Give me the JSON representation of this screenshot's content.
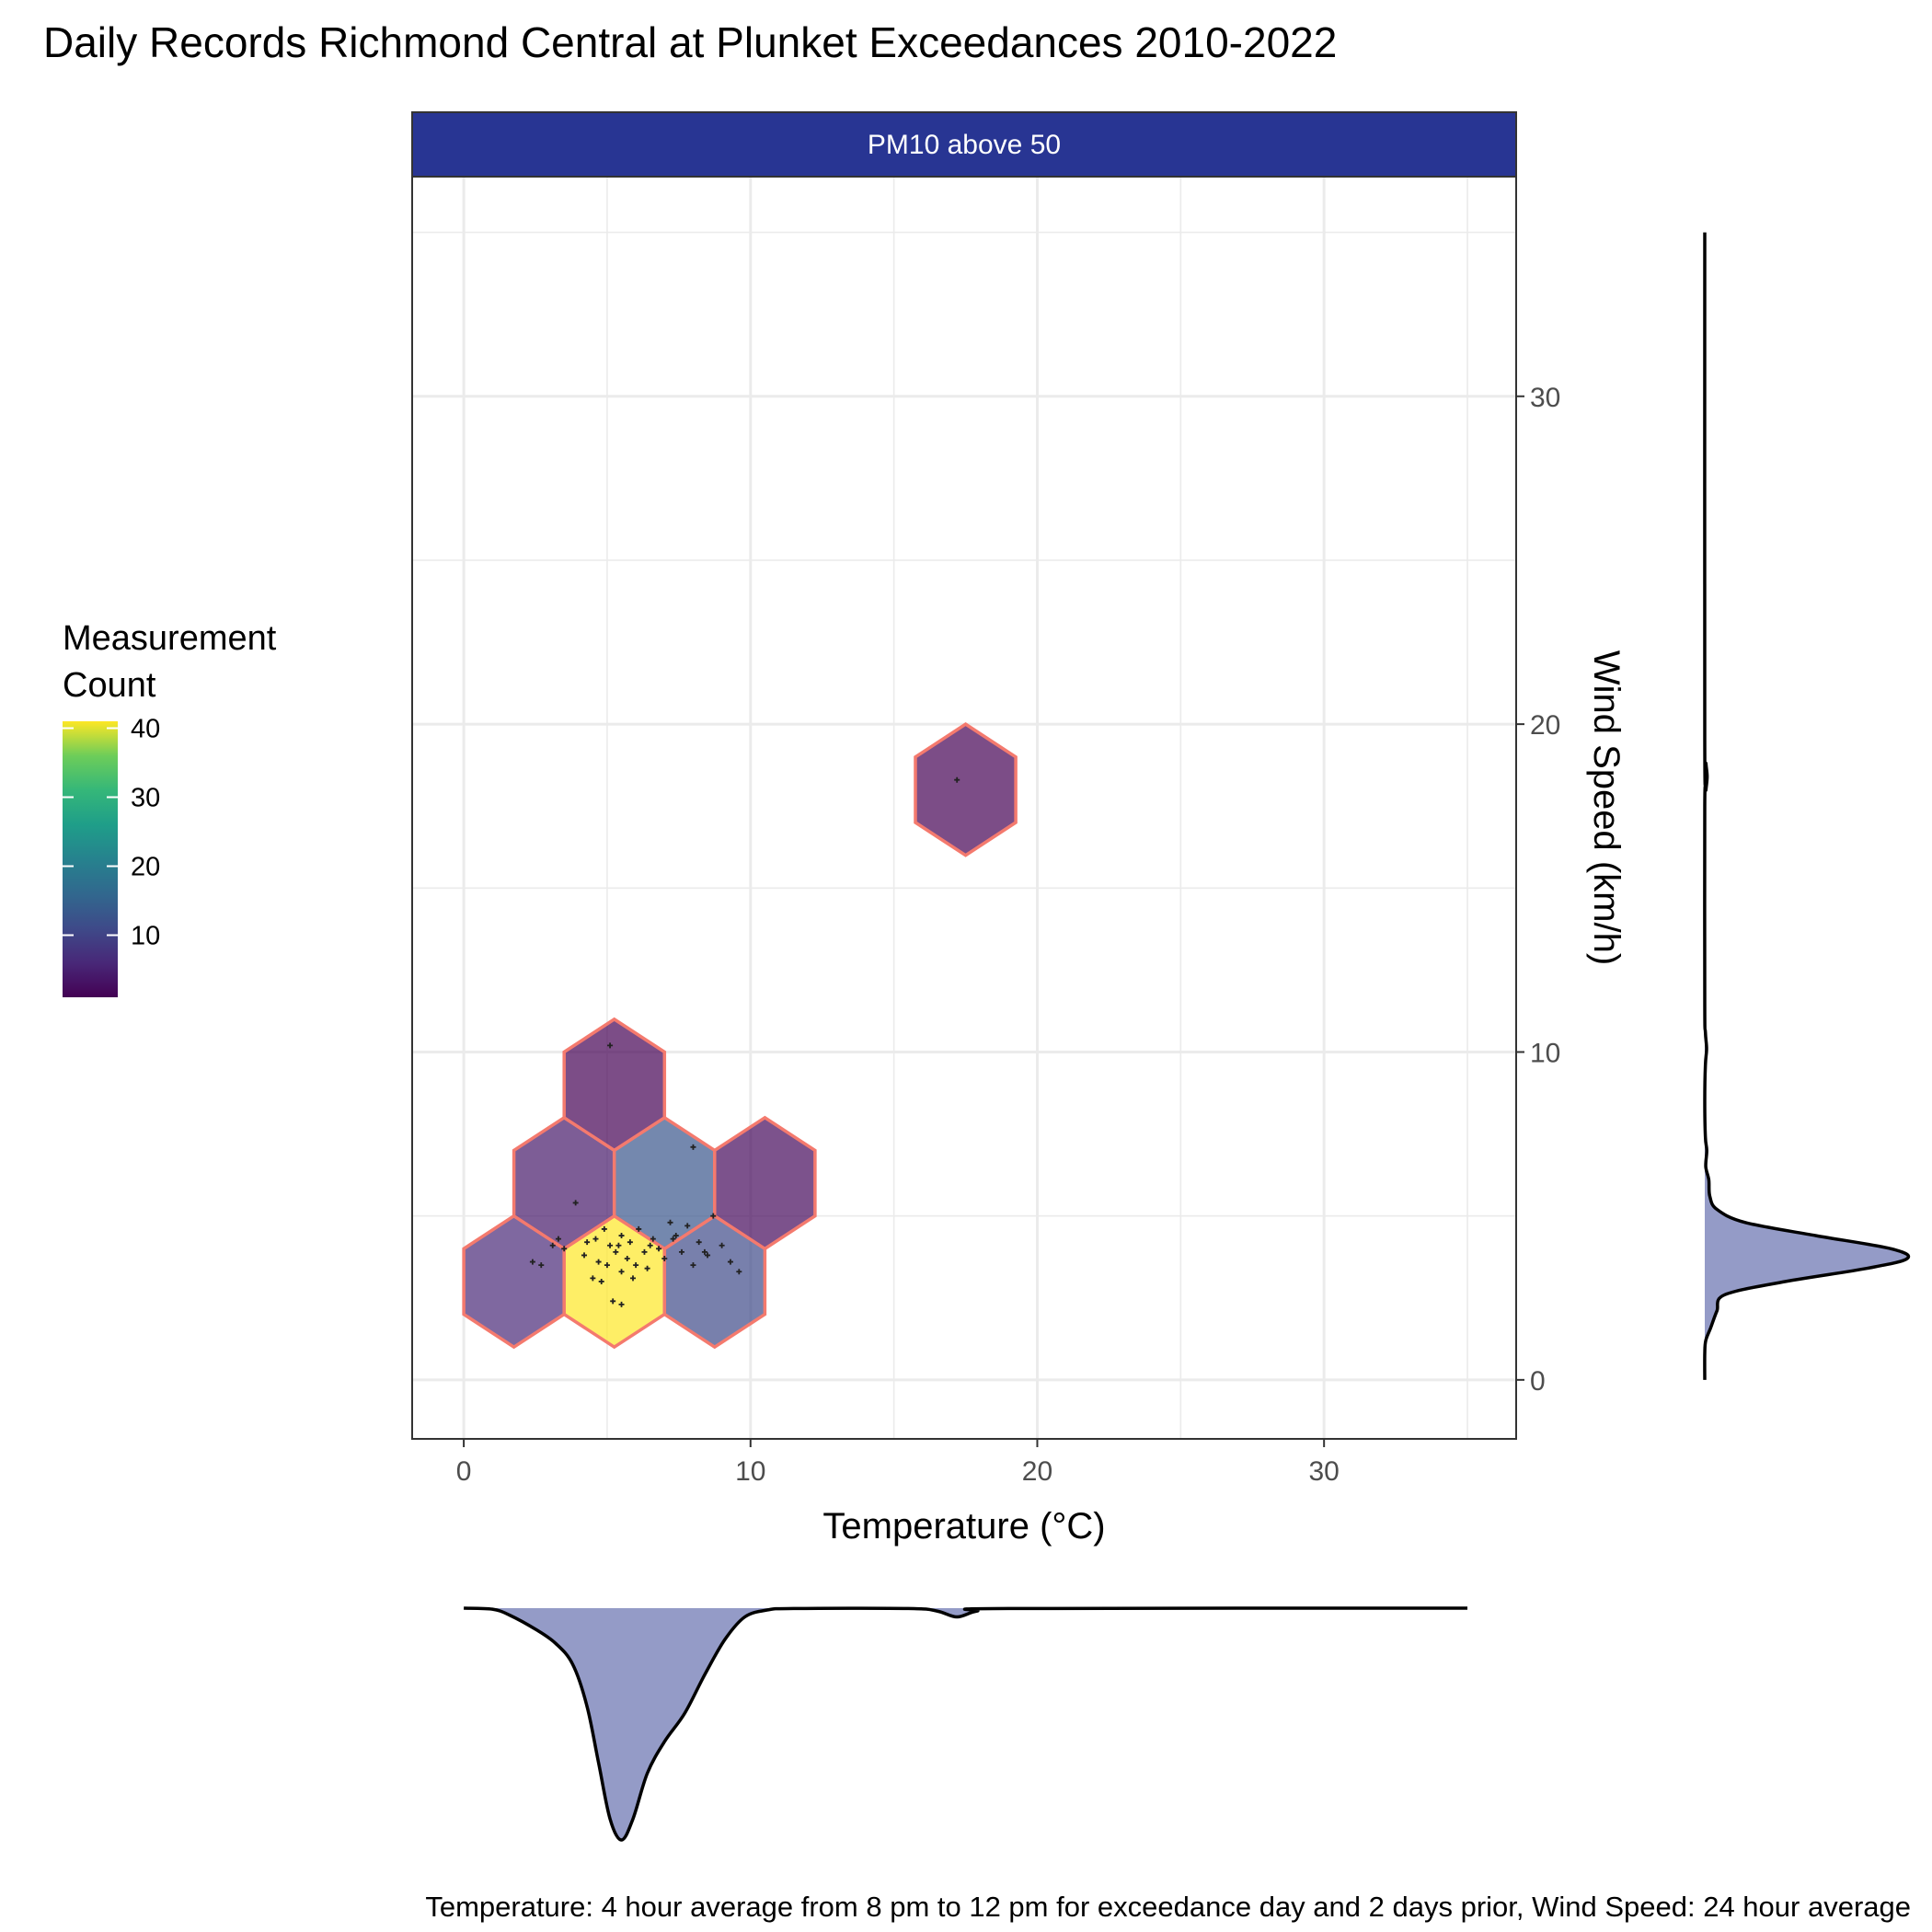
{
  "chart_data": {
    "type": "hexbin",
    "title": "Daily Records Richmond Central at Plunket Exceedances 2010-2022",
    "facet_label": "PM10 above 50",
    "xlabel": "Temperature (°C)",
    "ylabel": "Wind Speed (km/h)",
    "caption": "Temperature: 4 hour average from 8 pm to 12 pm for exceedance day and 2 days prior, Wind Speed: 24 hour average",
    "xlim": [
      -1.8,
      36.7
    ],
    "ylim": [
      -1.8,
      36.7
    ],
    "x_ticks": [
      0,
      10,
      20,
      30
    ],
    "y_ticks": [
      0,
      10,
      20,
      30
    ],
    "y_axis_position": "right",
    "grid": true,
    "legend": {
      "title_lines": [
        "Measurement",
        "Count"
      ],
      "position": "left",
      "ticks": [
        10,
        20,
        30,
        40
      ],
      "range": [
        1,
        41
      ],
      "palette": "viridis"
    },
    "hex_outline_color": "#F47A6E",
    "hexbins": [
      {
        "x": 1.75,
        "y": 3.0,
        "count": 6
      },
      {
        "x": 5.25,
        "y": 3.0,
        "count": 41
      },
      {
        "x": 8.75,
        "y": 3.0,
        "count": 11
      },
      {
        "x": 3.5,
        "y": 6.0,
        "count": 4
      },
      {
        "x": 7.0,
        "y": 6.0,
        "count": 13
      },
      {
        "x": 10.5,
        "y": 6.0,
        "count": 2
      },
      {
        "x": 5.25,
        "y": 9.0,
        "count": 1
      },
      {
        "x": 17.5,
        "y": 18.0,
        "count": 1
      }
    ],
    "points": [
      [
        2.4,
        3.6
      ],
      [
        2.7,
        3.5
      ],
      [
        3.1,
        4.1
      ],
      [
        3.3,
        4.3
      ],
      [
        3.5,
        4.0
      ],
      [
        3.9,
        5.4
      ],
      [
        4.3,
        4.2
      ],
      [
        4.5,
        3.1
      ],
      [
        4.7,
        3.6
      ],
      [
        4.9,
        4.6
      ],
      [
        5.0,
        3.5
      ],
      [
        5.1,
        4.1
      ],
      [
        5.3,
        3.9
      ],
      [
        5.5,
        3.3
      ],
      [
        5.5,
        4.4
      ],
      [
        5.7,
        3.7
      ],
      [
        5.8,
        4.2
      ],
      [
        6.0,
        3.5
      ],
      [
        6.1,
        4.6
      ],
      [
        6.3,
        3.9
      ],
      [
        6.4,
        3.4
      ],
      [
        6.6,
        4.3
      ],
      [
        6.8,
        4.0
      ],
      [
        7.0,
        3.7
      ],
      [
        7.2,
        4.8
      ],
      [
        7.4,
        4.4
      ],
      [
        7.6,
        3.9
      ],
      [
        7.8,
        4.7
      ],
      [
        8.0,
        3.5
      ],
      [
        8.2,
        4.2
      ],
      [
        8.5,
        3.8
      ],
      [
        8.7,
        5.0
      ],
      [
        9.0,
        4.1
      ],
      [
        9.3,
        3.6
      ],
      [
        9.6,
        3.3
      ],
      [
        5.5,
        2.3
      ],
      [
        5.2,
        2.4
      ],
      [
        4.8,
        3.0
      ],
      [
        8.0,
        7.1
      ],
      [
        5.1,
        10.2
      ],
      [
        17.2,
        18.3
      ],
      [
        4.2,
        3.8
      ],
      [
        5.9,
        3.1
      ],
      [
        6.5,
        4.1
      ],
      [
        7.3,
        4.3
      ],
      [
        8.4,
        3.9
      ],
      [
        4.6,
        4.3
      ],
      [
        5.4,
        4.1
      ]
    ],
    "x_density": [
      [
        0,
        0.0
      ],
      [
        1.0,
        0.003
      ],
      [
        1.6,
        0.02
      ],
      [
        2.5,
        0.06
      ],
      [
        3.2,
        0.1
      ],
      [
        3.8,
        0.16
      ],
      [
        4.3,
        0.28
      ],
      [
        4.7,
        0.44
      ],
      [
        5.1,
        0.6
      ],
      [
        5.5,
        0.66
      ],
      [
        5.9,
        0.6
      ],
      [
        6.4,
        0.47
      ],
      [
        7.0,
        0.38
      ],
      [
        7.7,
        0.3
      ],
      [
        8.4,
        0.19
      ],
      [
        9.1,
        0.09
      ],
      [
        9.8,
        0.025
      ],
      [
        10.6,
        0.005
      ],
      [
        11.5,
        0.001
      ],
      [
        15.5,
        0.001
      ],
      [
        16.5,
        0.008
      ],
      [
        17.2,
        0.025
      ],
      [
        17.9,
        0.008
      ],
      [
        19.0,
        0.001
      ],
      [
        35,
        0.0
      ]
    ],
    "y_density": [
      [
        0,
        0.0
      ],
      [
        0.8,
        0.0
      ],
      [
        1.2,
        0.005
      ],
      [
        1.6,
        0.03
      ],
      [
        2.1,
        0.06
      ],
      [
        2.6,
        0.1
      ],
      [
        3.0,
        0.4
      ],
      [
        3.4,
        0.8
      ],
      [
        3.7,
        1.0
      ],
      [
        4.0,
        0.92
      ],
      [
        4.4,
        0.55
      ],
      [
        4.8,
        0.2
      ],
      [
        5.2,
        0.06
      ],
      [
        5.6,
        0.025
      ],
      [
        6.1,
        0.02
      ],
      [
        6.5,
        0.005
      ],
      [
        7.0,
        0.01
      ],
      [
        7.4,
        0.003
      ],
      [
        8.5,
        0.0
      ],
      [
        9.6,
        0.003
      ],
      [
        10.1,
        0.009
      ],
      [
        10.6,
        0.003
      ],
      [
        11.5,
        0.0
      ],
      [
        17.5,
        0.0
      ],
      [
        18.0,
        0.006
      ],
      [
        18.4,
        0.012
      ],
      [
        18.8,
        0.006
      ],
      [
        19.5,
        0.0
      ],
      [
        35,
        0.0
      ]
    ],
    "density_fill_color": "#949BC7",
    "strip_color": "#283593"
  }
}
